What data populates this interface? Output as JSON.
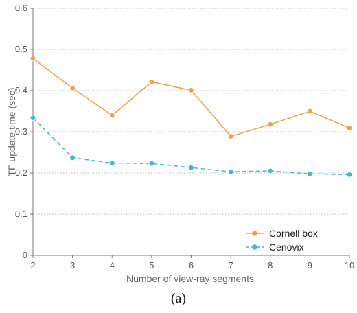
{
  "caption": "(a)",
  "chart_data": {
    "type": "line",
    "xlabel": "Number of view-ray segments",
    "ylabel": "TF update time (sec)",
    "x": [
      2,
      3,
      4,
      5,
      6,
      7,
      8,
      9,
      10
    ],
    "xlim": [
      2,
      10
    ],
    "ylim": [
      0,
      0.6
    ],
    "yticks": [
      "0",
      "0.1",
      "0.2",
      "0.3",
      "0.4",
      "0.5",
      "0.6"
    ],
    "xticks": [
      "2",
      "3",
      "4",
      "5",
      "6",
      "7",
      "8",
      "9",
      "10"
    ],
    "grid": "horizontal dotted",
    "legend_position": "bottom-right",
    "series": [
      {
        "name": "Cornell box",
        "color": "#f0a04b",
        "style": "solid",
        "values": [
          0.478,
          0.406,
          0.34,
          0.421,
          0.401,
          0.289,
          0.318,
          0.35,
          0.309
        ]
      },
      {
        "name": "Cenovix",
        "color": "#3bbcc8",
        "style": "dashed",
        "values": [
          0.334,
          0.237,
          0.224,
          0.223,
          0.213,
          0.203,
          0.205,
          0.198,
          0.196
        ]
      }
    ]
  }
}
